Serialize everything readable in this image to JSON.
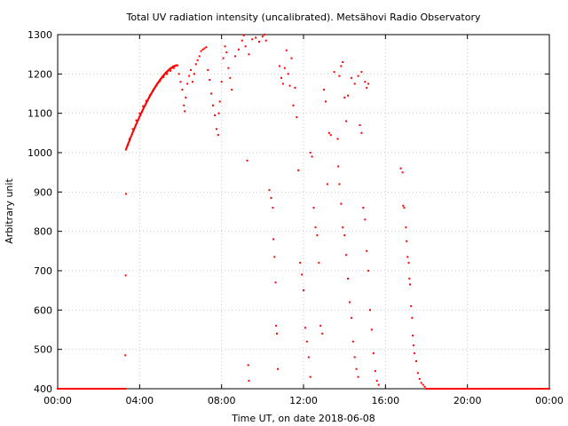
{
  "chart_data": {
    "type": "scatter",
    "title": "Total UV radiation intensity (uncalibrated). Metsähovi Radio Observatory",
    "xlabel": "Time UT, on date 2018-06-08",
    "ylabel": "Arbitrary unit",
    "xlim": [
      "00:00",
      "24:00"
    ],
    "ylim": [
      400,
      1300
    ],
    "x_ticks": [
      "00:00",
      "04:00",
      "08:00",
      "12:00",
      "16:00",
      "20:00",
      "00:00"
    ],
    "y_ticks": [
      "400",
      "500",
      "600",
      "700",
      "800",
      "900",
      "1000",
      "1100",
      "1200",
      "1300"
    ],
    "grid": true,
    "legend": "none",
    "series": [
      {
        "color": "#ff0000",
        "marker": "dot",
        "points": [
          [
            "00:00",
            400
          ],
          [
            "01:00",
            400
          ],
          [
            "02:00",
            400
          ],
          [
            "03:00",
            400
          ],
          [
            "03:18",
            400
          ],
          [
            "03:18",
            485
          ],
          [
            "03:19",
            688
          ],
          [
            "03:20",
            895
          ],
          [
            "03:20",
            1008
          ],
          [
            "03:25",
            1020
          ],
          [
            "03:30",
            1035
          ],
          [
            "03:40",
            1060
          ],
          [
            "03:50",
            1082
          ],
          [
            "04:00",
            1100
          ],
          [
            "04:10",
            1118
          ],
          [
            "04:20",
            1132
          ],
          [
            "04:30",
            1146
          ],
          [
            "04:40",
            1160
          ],
          [
            "04:50",
            1172
          ],
          [
            "05:00",
            1182
          ],
          [
            "05:10",
            1192
          ],
          [
            "05:20",
            1200
          ],
          [
            "05:30",
            1208
          ],
          [
            "05:40",
            1215
          ],
          [
            "05:50",
            1222
          ],
          [
            "05:55",
            1200
          ],
          [
            "06:00",
            1180
          ],
          [
            "06:05",
            1160
          ],
          [
            "06:10",
            1120
          ],
          [
            "06:12",
            1105
          ],
          [
            "06:15",
            1140
          ],
          [
            "06:20",
            1175
          ],
          [
            "06:25",
            1195
          ],
          [
            "06:30",
            1210
          ],
          [
            "06:35",
            1180
          ],
          [
            "06:40",
            1200
          ],
          [
            "06:45",
            1225
          ],
          [
            "06:50",
            1235
          ],
          [
            "06:55",
            1245
          ],
          [
            "07:00",
            1258
          ],
          [
            "07:05",
            1262
          ],
          [
            "07:10",
            1265
          ],
          [
            "07:15",
            1268
          ],
          [
            "07:20",
            1210
          ],
          [
            "07:25",
            1185
          ],
          [
            "07:30",
            1150
          ],
          [
            "07:35",
            1120
          ],
          [
            "07:40",
            1095
          ],
          [
            "07:45",
            1060
          ],
          [
            "07:50",
            1045
          ],
          [
            "07:52",
            1100
          ],
          [
            "07:55",
            1130
          ],
          [
            "08:00",
            1180
          ],
          [
            "08:05",
            1240
          ],
          [
            "08:10",
            1270
          ],
          [
            "08:15",
            1255
          ],
          [
            "08:20",
            1215
          ],
          [
            "08:25",
            1190
          ],
          [
            "08:30",
            1160
          ],
          [
            "08:40",
            1245
          ],
          [
            "08:50",
            1262
          ],
          [
            "09:00",
            1285
          ],
          [
            "09:05",
            1298
          ],
          [
            "09:10",
            1270
          ],
          [
            "09:20",
            1250
          ],
          [
            "09:30",
            1288
          ],
          [
            "09:40",
            1292
          ],
          [
            "09:50",
            1282
          ],
          [
            "10:00",
            1295
          ],
          [
            "10:05",
            1300
          ],
          [
            "10:10",
            1285
          ],
          [
            "09:15",
            980
          ],
          [
            "09:18",
            460
          ],
          [
            "09:20",
            420
          ],
          [
            "10:20",
            905
          ],
          [
            "10:25",
            885
          ],
          [
            "10:30",
            860
          ],
          [
            "10:32",
            780
          ],
          [
            "10:35",
            735
          ],
          [
            "10:38",
            670
          ],
          [
            "10:40",
            560
          ],
          [
            "10:42",
            540
          ],
          [
            "10:45",
            450
          ],
          [
            "10:50",
            1220
          ],
          [
            "10:55",
            1190
          ],
          [
            "11:00",
            1175
          ],
          [
            "11:05",
            1215
          ],
          [
            "11:10",
            1260
          ],
          [
            "11:15",
            1200
          ],
          [
            "11:20",
            1170
          ],
          [
            "11:25",
            1240
          ],
          [
            "11:30",
            1120
          ],
          [
            "11:35",
            1165
          ],
          [
            "11:40",
            1090
          ],
          [
            "11:45",
            955
          ],
          [
            "11:50",
            720
          ],
          [
            "11:55",
            690
          ],
          [
            "12:00",
            650
          ],
          [
            "12:05",
            555
          ],
          [
            "12:10",
            520
          ],
          [
            "12:15",
            480
          ],
          [
            "12:20",
            430
          ],
          [
            "12:20",
            1000
          ],
          [
            "12:25",
            990
          ],
          [
            "12:30",
            860
          ],
          [
            "12:35",
            810
          ],
          [
            "12:40",
            790
          ],
          [
            "12:45",
            720
          ],
          [
            "12:50",
            560
          ],
          [
            "12:55",
            540
          ],
          [
            "13:00",
            1160
          ],
          [
            "13:05",
            1130
          ],
          [
            "13:10",
            920
          ],
          [
            "13:15",
            1050
          ],
          [
            "13:20",
            1045
          ],
          [
            "13:30",
            1205
          ],
          [
            "13:45",
            1195
          ],
          [
            "13:50",
            1220
          ],
          [
            "13:55",
            1230
          ],
          [
            "14:00",
            1140
          ],
          [
            "14:05",
            1080
          ],
          [
            "14:10",
            1145
          ],
          [
            "14:20",
            1190
          ],
          [
            "14:30",
            1175
          ],
          [
            "14:40",
            1195
          ],
          [
            "14:50",
            1205
          ],
          [
            "15:00",
            1180
          ],
          [
            "15:05",
            1165
          ],
          [
            "15:10",
            1175
          ],
          [
            "13:40",
            1035
          ],
          [
            "13:42",
            965
          ],
          [
            "13:45",
            920
          ],
          [
            "13:50",
            870
          ],
          [
            "13:55",
            810
          ],
          [
            "14:00",
            790
          ],
          [
            "14:05",
            740
          ],
          [
            "14:10",
            680
          ],
          [
            "14:15",
            620
          ],
          [
            "14:20",
            580
          ],
          [
            "14:25",
            520
          ],
          [
            "14:30",
            480
          ],
          [
            "14:35",
            450
          ],
          [
            "14:40",
            430
          ],
          [
            "14:45",
            1070
          ],
          [
            "14:50",
            1050
          ],
          [
            "14:55",
            860
          ],
          [
            "15:00",
            830
          ],
          [
            "15:05",
            750
          ],
          [
            "15:10",
            700
          ],
          [
            "15:15",
            600
          ],
          [
            "15:20",
            550
          ],
          [
            "15:25",
            490
          ],
          [
            "15:30",
            445
          ],
          [
            "15:35",
            420
          ],
          [
            "15:40",
            410
          ],
          [
            "16:45",
            960
          ],
          [
            "16:50",
            950
          ],
          [
            "16:52",
            865
          ],
          [
            "16:55",
            860
          ],
          [
            "17:00",
            810
          ],
          [
            "17:02",
            775
          ],
          [
            "17:05",
            735
          ],
          [
            "17:08",
            720
          ],
          [
            "17:10",
            680
          ],
          [
            "17:12",
            665
          ],
          [
            "17:15",
            610
          ],
          [
            "17:18",
            580
          ],
          [
            "17:20",
            535
          ],
          [
            "17:22",
            510
          ],
          [
            "17:25",
            490
          ],
          [
            "17:30",
            470
          ],
          [
            "17:35",
            440
          ],
          [
            "17:40",
            425
          ],
          [
            "17:45",
            415
          ],
          [
            "17:50",
            410
          ],
          [
            "17:55",
            405
          ],
          [
            "18:00",
            400
          ],
          [
            "19:00",
            400
          ],
          [
            "20:00",
            400
          ],
          [
            "21:00",
            400
          ],
          [
            "22:00",
            400
          ],
          [
            "23:00",
            400
          ],
          [
            "24:00",
            400
          ]
        ]
      }
    ]
  }
}
